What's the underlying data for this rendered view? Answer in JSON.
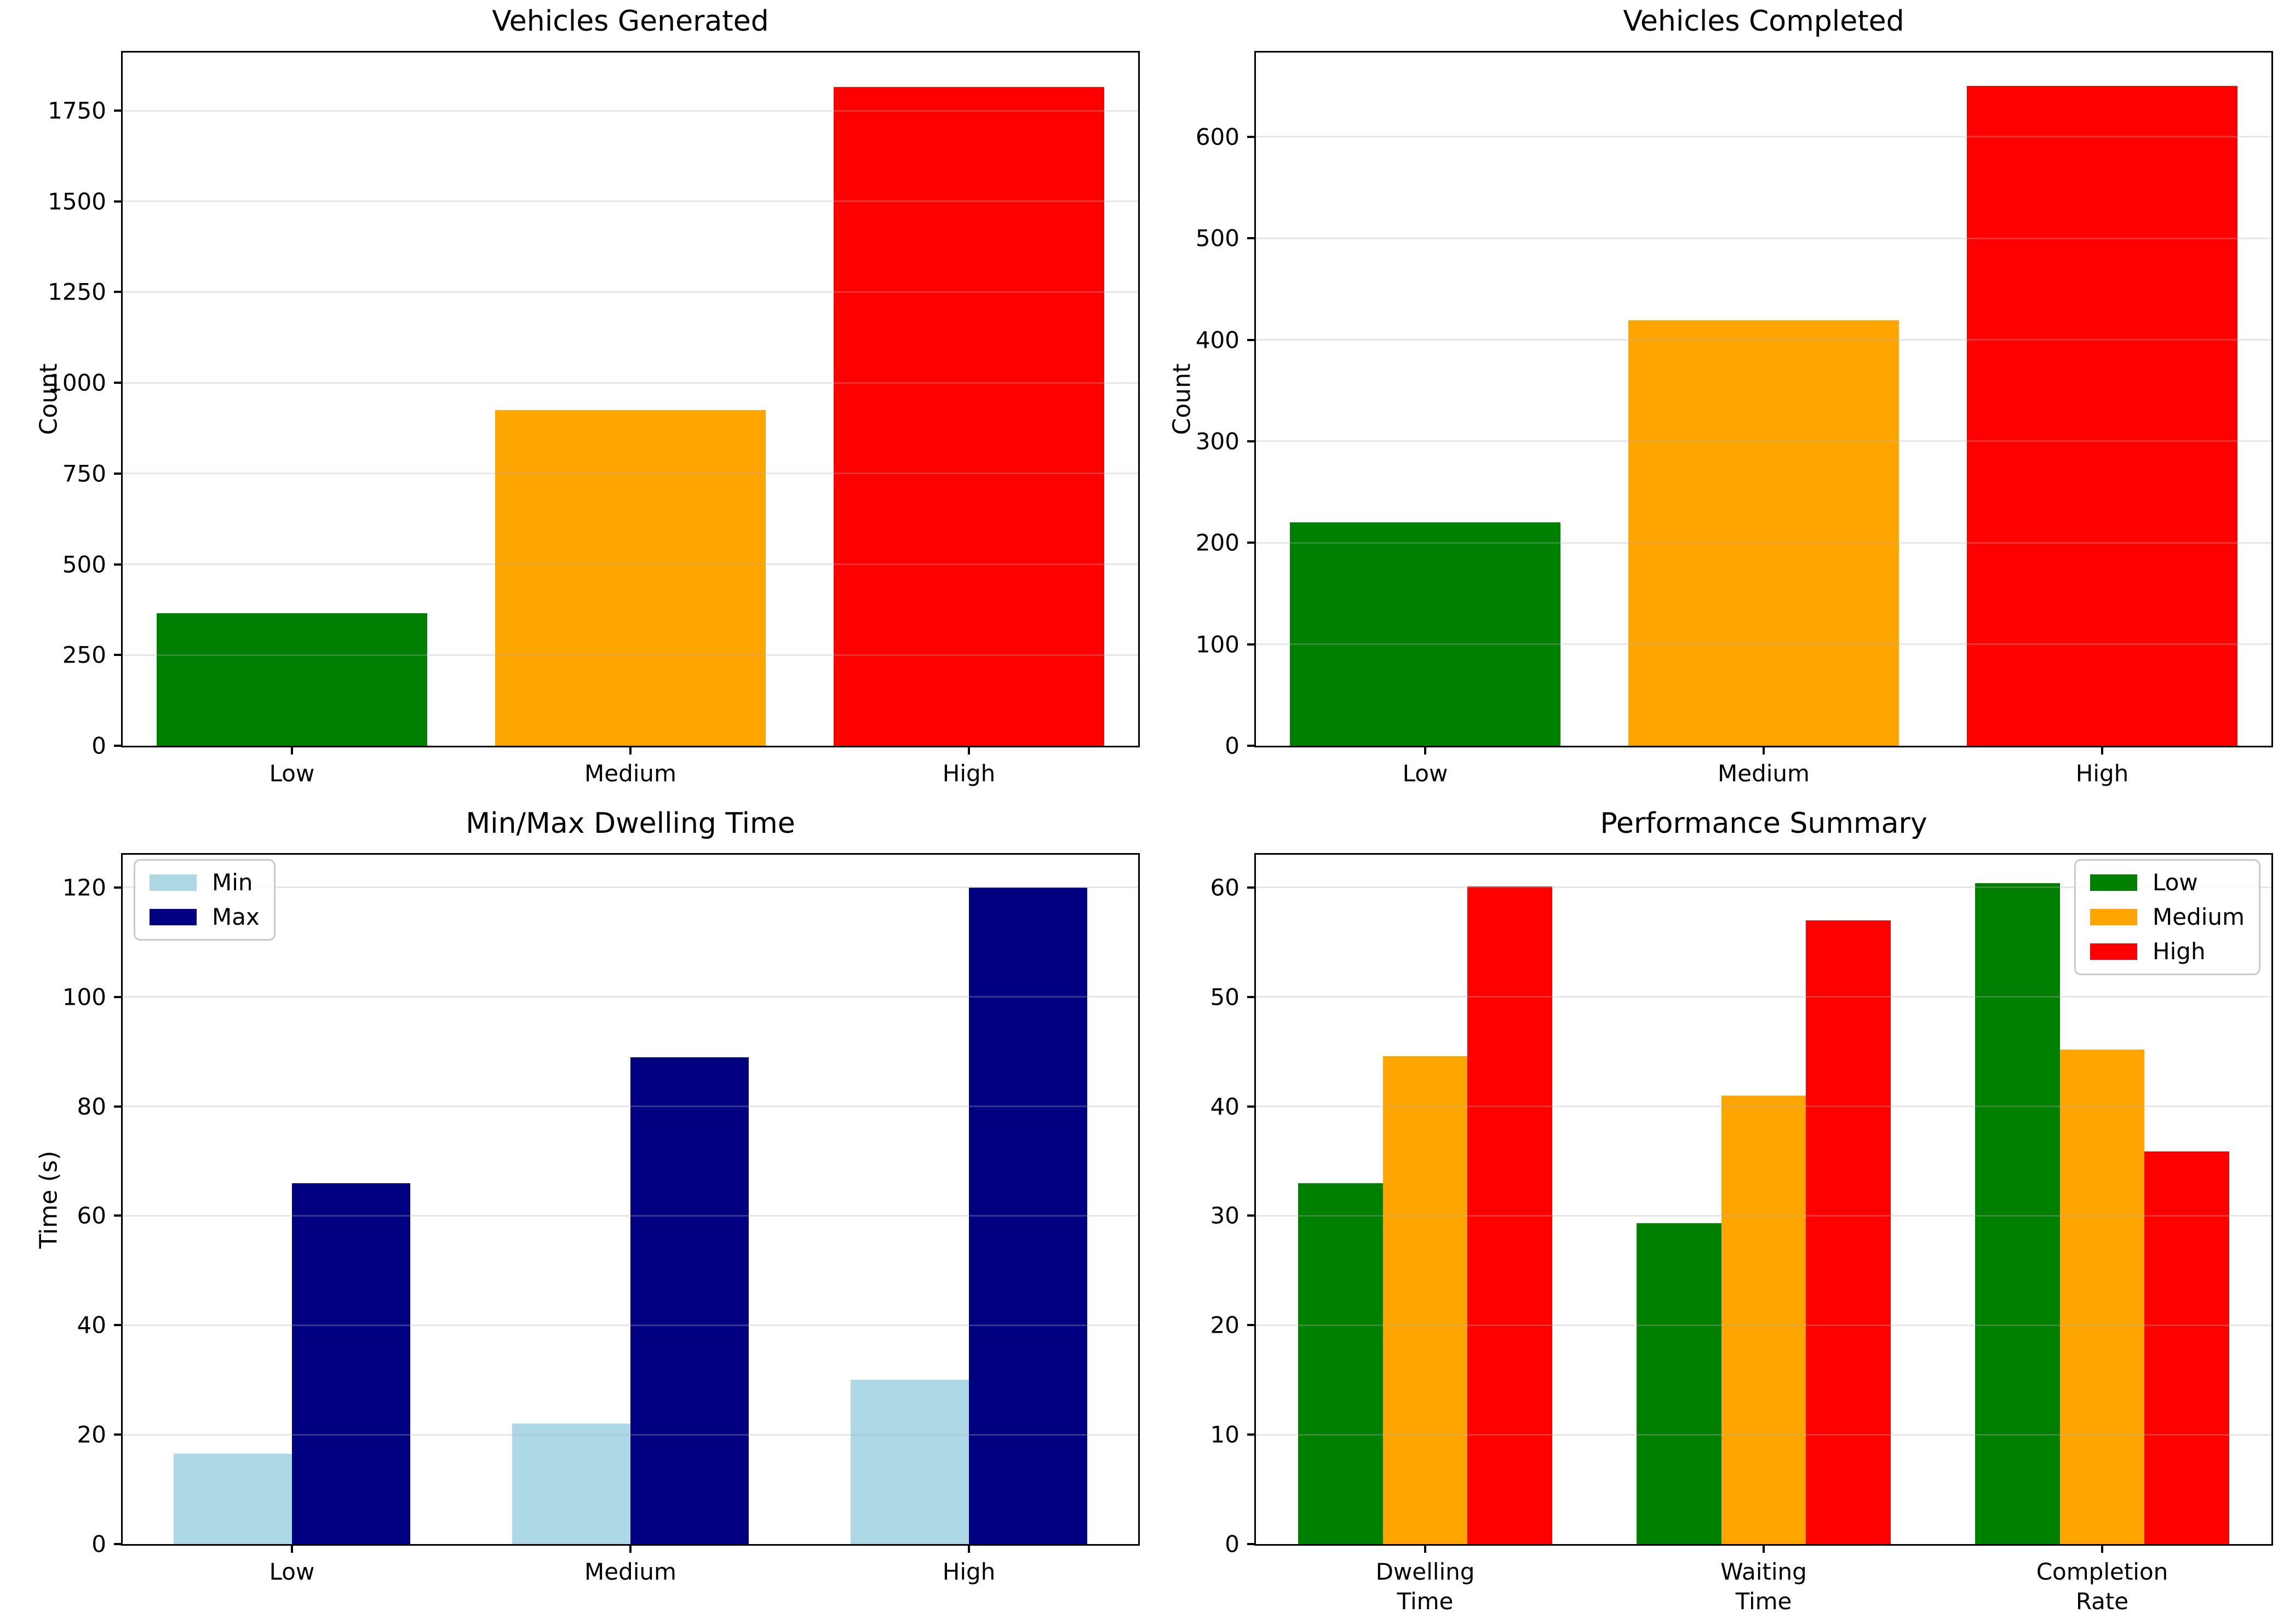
{
  "figure": {
    "background": "#ffffff"
  },
  "palette": {
    "green": "#008000",
    "orange": "#FFA500",
    "red": "#FF0000",
    "lightblue": "#ADD8E6",
    "navy": "#000080",
    "grid": "#b0b0b0",
    "axis": "#000000"
  },
  "chart_data": [
    {
      "type": "bar",
      "title": "Vehicles Generated",
      "ylabel": "Count",
      "categories": [
        "Low",
        "Medium",
        "High"
      ],
      "series": [
        {
          "name": "",
          "colors": [
            "#008000",
            "#FFA500",
            "#FF0000"
          ],
          "values": [
            365,
            925,
            1815
          ]
        }
      ],
      "bar_width": 0.8,
      "ylim": [
        0,
        1910
      ],
      "yticks": [
        0,
        250,
        500,
        750,
        1000,
        1250,
        1500,
        1750
      ],
      "grid": true,
      "legend": null
    },
    {
      "type": "bar",
      "title": "Vehicles Completed",
      "ylabel": "Count",
      "categories": [
        "Low",
        "Medium",
        "High"
      ],
      "series": [
        {
          "name": "",
          "colors": [
            "#008000",
            "#FFA500",
            "#FF0000"
          ],
          "values": [
            220,
            419,
            650
          ]
        }
      ],
      "bar_width": 0.8,
      "ylim": [
        0,
        683
      ],
      "yticks": [
        0,
        100,
        200,
        300,
        400,
        500,
        600
      ],
      "grid": true,
      "legend": null
    },
    {
      "type": "bar",
      "title": "Min/Max Dwelling Time",
      "ylabel": "Time (s)",
      "categories": [
        "Low",
        "Medium",
        "High"
      ],
      "series": [
        {
          "name": "Min",
          "color": "#ADD8E6",
          "values": [
            16.5,
            22,
            30
          ]
        },
        {
          "name": "Max",
          "color": "#000080",
          "values": [
            66,
            89,
            120
          ]
        }
      ],
      "bar_width": 0.35,
      "ylim": [
        0,
        126
      ],
      "yticks": [
        0,
        20,
        40,
        60,
        80,
        100,
        120
      ],
      "grid": true,
      "legend": {
        "position": "upper-left",
        "entries": [
          "Min",
          "Max"
        ]
      }
    },
    {
      "type": "bar",
      "title": "Performance Summary",
      "ylabel": "",
      "categories": [
        "Dwelling\nTime",
        "Waiting\nTime",
        "Completion\nRate"
      ],
      "series": [
        {
          "name": "Low",
          "color": "#008000",
          "values": [
            33,
            29.3,
            60.4
          ]
        },
        {
          "name": "Medium",
          "color": "#FFA500",
          "values": [
            44.6,
            41,
            45.2
          ]
        },
        {
          "name": "High",
          "color": "#FF0000",
          "values": [
            60.1,
            57,
            35.9
          ]
        }
      ],
      "bar_width": 0.25,
      "ylim": [
        0,
        63
      ],
      "yticks": [
        0,
        10,
        20,
        30,
        40,
        50,
        60
      ],
      "grid": true,
      "legend": {
        "position": "upper-right",
        "entries": [
          "Low",
          "Medium",
          "High"
        ]
      }
    }
  ]
}
